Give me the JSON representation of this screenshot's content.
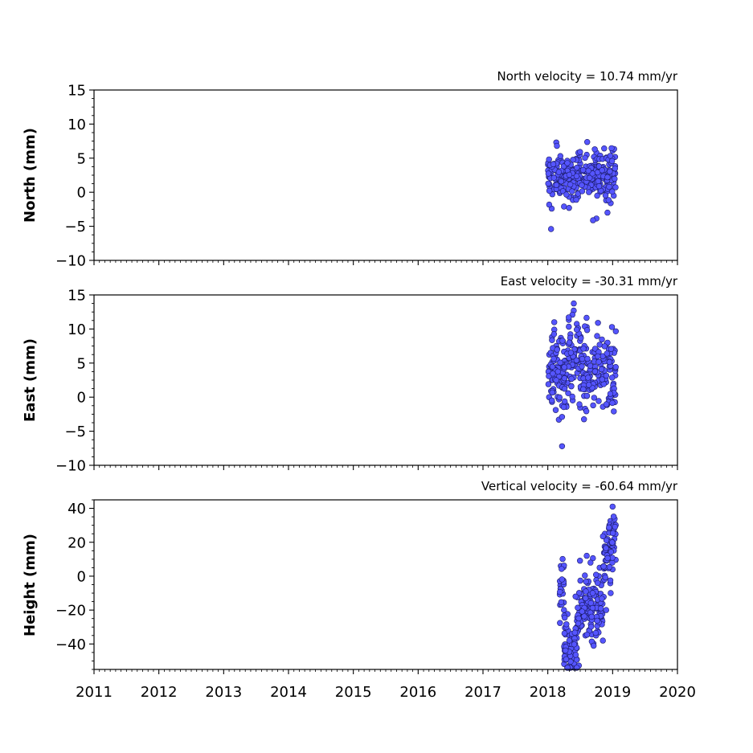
{
  "chart_data": [
    {
      "type": "scatter",
      "title": "North velocity = 10.74 mm/yr",
      "xlabel": "",
      "ylabel": "North (mm)",
      "xlim": [
        2011,
        2020
      ],
      "ylim": [
        -10,
        15
      ],
      "yticks": [
        -10,
        -5,
        0,
        5,
        10,
        15
      ],
      "ytick_labels": [
        "−10",
        "−5",
        "0",
        "5",
        "10",
        "15"
      ],
      "xticks": [
        2011,
        2012,
        2013,
        2014,
        2015,
        2016,
        2017,
        2018,
        2019,
        2020
      ],
      "xtick_labels": [],
      "grid": false,
      "marker_color": "#5555ff",
      "data": {
        "x_range": [
          2018.0,
          2019.05
        ],
        "approx_points": 300,
        "samples": [
          {
            "x": 2018.05,
            "y": 2.5
          },
          {
            "x": 2018.07,
            "y": -0.3
          },
          {
            "x": 2018.06,
            "y": -2.4
          },
          {
            "x": 2018.05,
            "y": -5.4
          },
          {
            "x": 2018.13,
            "y": 7.3
          },
          {
            "x": 2018.14,
            "y": 6.8
          },
          {
            "x": 2018.15,
            "y": 0.4
          },
          {
            "x": 2018.2,
            "y": 4.7
          },
          {
            "x": 2018.25,
            "y": -2.1
          },
          {
            "x": 2018.3,
            "y": 3.1
          },
          {
            "x": 2018.4,
            "y": 1.1
          },
          {
            "x": 2018.45,
            "y": -0.8
          },
          {
            "x": 2018.5,
            "y": 4.2
          },
          {
            "x": 2018.55,
            "y": 1.6
          },
          {
            "x": 2018.6,
            "y": 5.5
          },
          {
            "x": 2018.65,
            "y": 0.2
          },
          {
            "x": 2018.7,
            "y": 3.7
          },
          {
            "x": 2018.75,
            "y": 5.8
          },
          {
            "x": 2018.8,
            "y": 2.1
          },
          {
            "x": 2018.85,
            "y": 0.3
          },
          {
            "x": 2018.9,
            "y": -1.2
          },
          {
            "x": 2018.92,
            "y": -3.0
          },
          {
            "x": 2018.97,
            "y": -1.6
          },
          {
            "x": 2019.0,
            "y": 6.1
          },
          {
            "x": 2019.0,
            "y": 0.9
          }
        ]
      }
    },
    {
      "type": "scatter",
      "title": "East velocity = -30.31 mm/yr",
      "xlabel": "",
      "ylabel": "East (mm)",
      "xlim": [
        2011,
        2020
      ],
      "ylim": [
        -10,
        15
      ],
      "yticks": [
        -10,
        -5,
        0,
        5,
        10,
        15
      ],
      "ytick_labels": [
        "−10",
        "−5",
        "0",
        "5",
        "10",
        "15"
      ],
      "xticks": [
        2011,
        2012,
        2013,
        2014,
        2015,
        2016,
        2017,
        2018,
        2019,
        2020
      ],
      "xtick_labels": [],
      "grid": false,
      "marker_color": "#5555ff",
      "data": {
        "x_range": [
          2018.0,
          2019.05
        ],
        "approx_points": 300,
        "samples": [
          {
            "x": 2018.02,
            "y": 0.0
          },
          {
            "x": 2018.05,
            "y": 3.2
          },
          {
            "x": 2018.1,
            "y": 11.0
          },
          {
            "x": 2018.1,
            "y": 9.9
          },
          {
            "x": 2018.12,
            "y": 6.3
          },
          {
            "x": 2018.17,
            "y": -3.3
          },
          {
            "x": 2018.22,
            "y": -2.9
          },
          {
            "x": 2018.22,
            "y": -7.2
          },
          {
            "x": 2018.3,
            "y": 2.1
          },
          {
            "x": 2018.4,
            "y": 12.7
          },
          {
            "x": 2018.38,
            "y": 12.1
          },
          {
            "x": 2018.45,
            "y": 9.0
          },
          {
            "x": 2018.5,
            "y": 2.8
          },
          {
            "x": 2018.55,
            "y": 5.6
          },
          {
            "x": 2018.6,
            "y": 10.3
          },
          {
            "x": 2018.65,
            "y": 3.1
          },
          {
            "x": 2018.7,
            "y": -1.2
          },
          {
            "x": 2018.75,
            "y": 6.9
          },
          {
            "x": 2018.8,
            "y": 7.7
          },
          {
            "x": 2018.85,
            "y": -1.4
          },
          {
            "x": 2018.9,
            "y": 2.2
          },
          {
            "x": 2018.95,
            "y": 5.1
          },
          {
            "x": 2018.99,
            "y": 10.3
          },
          {
            "x": 2019.0,
            "y": -0.6
          },
          {
            "x": 2019.0,
            "y": 1.2
          }
        ]
      }
    },
    {
      "type": "scatter",
      "title": "Vertical velocity = -60.64 mm/yr",
      "xlabel": "",
      "ylabel": "Height (mm)",
      "xlim": [
        2011,
        2020
      ],
      "ylim": [
        -55,
        45
      ],
      "yticks": [
        -40,
        -20,
        0,
        20,
        40
      ],
      "ytick_labels": [
        "−40",
        "−20",
        "0",
        "20",
        "40"
      ],
      "xticks": [
        2011,
        2012,
        2013,
        2014,
        2015,
        2016,
        2017,
        2018,
        2019,
        2020
      ],
      "xtick_labels": [
        "2011",
        "2012",
        "2013",
        "2014",
        "2015",
        "2016",
        "2017",
        "2018",
        "2019",
        "2020"
      ],
      "grid": false,
      "marker_color": "#5555ff",
      "data": {
        "x_range": [
          2018.18,
          2019.05
        ],
        "approx_points": 300,
        "samples": [
          {
            "x": 2018.2,
            "y": 6.0
          },
          {
            "x": 2018.22,
            "y": -5.0
          },
          {
            "x": 2018.25,
            "y": -20.0
          },
          {
            "x": 2018.3,
            "y": -45.0
          },
          {
            "x": 2018.35,
            "y": -52.0
          },
          {
            "x": 2018.38,
            "y": -48.0
          },
          {
            "x": 2018.42,
            "y": -35.0
          },
          {
            "x": 2018.5,
            "y": -30.0
          },
          {
            "x": 2018.55,
            "y": -15.0
          },
          {
            "x": 2018.6,
            "y": 12.0
          },
          {
            "x": 2018.65,
            "y": -25.0
          },
          {
            "x": 2018.7,
            "y": -40.0
          },
          {
            "x": 2018.75,
            "y": -10.0
          },
          {
            "x": 2018.8,
            "y": 5.0
          },
          {
            "x": 2018.85,
            "y": -38.0
          },
          {
            "x": 2018.88,
            "y": 25.0
          },
          {
            "x": 2018.9,
            "y": -20.0
          },
          {
            "x": 2018.95,
            "y": 30.0
          },
          {
            "x": 2018.97,
            "y": -10.0
          },
          {
            "x": 2019.0,
            "y": 41.0
          },
          {
            "x": 2019.0,
            "y": 4.0
          }
        ]
      }
    }
  ]
}
